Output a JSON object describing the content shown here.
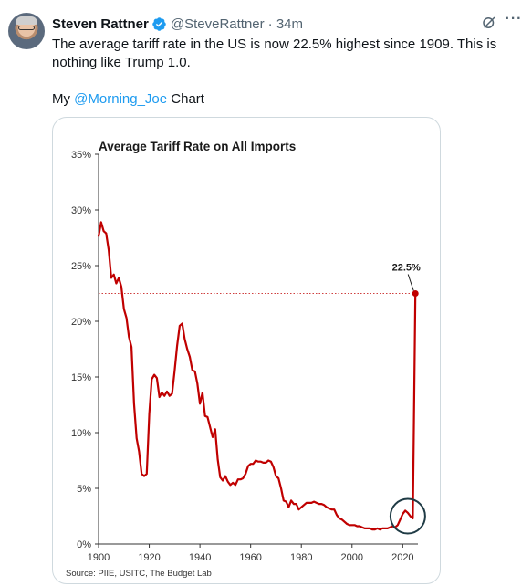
{
  "tweet": {
    "author_name": "Steven Rattner",
    "handle": "@SteveRattner",
    "time": "· 34m",
    "text_line1": "The average tariff rate in the US is now 22.5% highest since 1909. This is",
    "text_line2": "nothing like Trump 1.0.",
    "text_prefix": "My",
    "mention": "@Morning_Joe",
    "text_suffix": " Chart"
  },
  "icons": {
    "verified": "verified-badge-icon",
    "grok": "grok-icon",
    "more": "more-options-icon"
  },
  "colors": {
    "line": "#c00000",
    "mention": "#1d9bf0",
    "verified": "#1d9bf0"
  },
  "chart_data": {
    "type": "line",
    "title": "Average Tariff Rate on All Imports",
    "source": "Source: PIIE, USITC, The Budget Lab",
    "xlim": [
      1900,
      2026
    ],
    "ylim": [
      0,
      35
    ],
    "x_ticks": [
      "1900",
      "1920",
      "1940",
      "1960",
      "1980",
      "2000",
      "2020"
    ],
    "y_ticks": [
      "0%",
      "5%",
      "10%",
      "15%",
      "20%",
      "25%",
      "30%",
      "35%"
    ],
    "annotation": {
      "label": "22.5%",
      "x": 2025,
      "y": 22.5
    },
    "circle_highlight": {
      "x": 2022,
      "y": 2.5
    },
    "series": [
      {
        "x": [
          1900,
          1901,
          1902,
          1903,
          1904,
          1905,
          1906,
          1907,
          1908,
          1909,
          1910,
          1911,
          1912,
          1913,
          1914,
          1915,
          1916,
          1917,
          1918,
          1919,
          1920,
          1921,
          1922,
          1923,
          1924,
          1925,
          1926,
          1927,
          1928,
          1929,
          1930,
          1931,
          1932,
          1933,
          1934,
          1935,
          1936,
          1937,
          1938,
          1939,
          1940,
          1941,
          1942,
          1943,
          1944,
          1945,
          1946,
          1947,
          1948,
          1949,
          1950,
          1951,
          1952,
          1953,
          1954,
          1955,
          1956,
          1957,
          1958,
          1959,
          1960,
          1961,
          1962,
          1963,
          1964,
          1965,
          1966,
          1967,
          1968,
          1969,
          1970,
          1971,
          1972,
          1973,
          1974,
          1975,
          1976,
          1977,
          1978,
          1979,
          1980,
          1981,
          1982,
          1983,
          1984,
          1985,
          1986,
          1987,
          1988,
          1989,
          1990,
          1991,
          1992,
          1993,
          1994,
          1995,
          1996,
          1997,
          1998,
          1999,
          2000,
          2001,
          2002,
          2003,
          2004,
          2005,
          2006,
          2007,
          2008,
          2009,
          2010,
          2011,
          2012,
          2013,
          2014,
          2015,
          2016,
          2017,
          2018,
          2019,
          2020,
          2021,
          2022,
          2023,
          2024,
          2025
        ],
        "y": [
          27.6,
          28.9,
          28.1,
          27.9,
          26.4,
          23.9,
          24.2,
          23.4,
          23.9,
          23.1,
          21.1,
          20.3,
          18.6,
          17.7,
          12.6,
          9.5,
          8.3,
          6.3,
          6.1,
          6.3,
          11.7,
          14.8,
          15.2,
          14.9,
          13.2,
          13.6,
          13.3,
          13.7,
          13.3,
          13.5,
          15.5,
          17.8,
          19.6,
          19.8,
          18.4,
          17.5,
          16.8,
          15.6,
          15.5,
          14.4,
          12.6,
          13.6,
          11.5,
          11.4,
          10.5,
          9.6,
          10.3,
          7.6,
          6.0,
          5.7,
          6.1,
          5.6,
          5.3,
          5.5,
          5.3,
          5.8,
          5.8,
          5.9,
          6.3,
          7.0,
          7.2,
          7.2,
          7.5,
          7.4,
          7.4,
          7.3,
          7.3,
          7.5,
          7.4,
          6.9,
          6.1,
          5.9,
          5.0,
          3.9,
          3.8,
          3.3,
          3.9,
          3.6,
          3.6,
          3.1,
          3.3,
          3.5,
          3.7,
          3.7,
          3.7,
          3.8,
          3.7,
          3.6,
          3.6,
          3.5,
          3.3,
          3.2,
          3.1,
          3.1,
          2.6,
          2.3,
          2.2,
          2.0,
          1.8,
          1.7,
          1.7,
          1.7,
          1.6,
          1.6,
          1.5,
          1.4,
          1.4,
          1.4,
          1.3,
          1.3,
          1.4,
          1.3,
          1.4,
          1.4,
          1.4,
          1.5,
          1.6,
          1.5,
          1.7,
          2.2,
          2.7,
          3.0,
          2.8,
          2.5,
          2.3,
          22.5
        ]
      }
    ]
  }
}
